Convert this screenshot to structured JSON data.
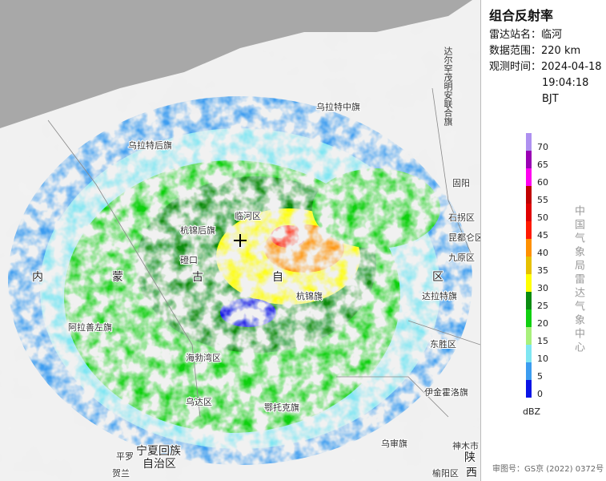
{
  "panel": {
    "title": "组合反射率",
    "station_label": "雷达站名：",
    "station": "临河",
    "range_label": "数据范围：",
    "range": "220 km",
    "time_label": "观测时间：",
    "time_date": "2024-04-18",
    "time_clock": "19:04:18 BJT",
    "vertical_credit": "中国气象局雷达气象中心",
    "approval": "审图号：GS京 (2022) 0372号"
  },
  "legend": {
    "unit": "dBZ",
    "levels": [
      {
        "value": 0,
        "color": "#0a14e6"
      },
      {
        "value": 5,
        "color": "#3c9cf0"
      },
      {
        "value": 10,
        "color": "#7fe6f2"
      },
      {
        "value": 15,
        "color": "#a8f07c"
      },
      {
        "value": 20,
        "color": "#10d010"
      },
      {
        "value": 25,
        "color": "#0a8c10"
      },
      {
        "value": 30,
        "color": "#ffff00"
      },
      {
        "value": 35,
        "color": "#e6c000"
      },
      {
        "value": 40,
        "color": "#ff9000"
      },
      {
        "value": 45,
        "color": "#ff1a00"
      },
      {
        "value": 50,
        "color": "#e00000"
      },
      {
        "value": 55,
        "color": "#c00000"
      },
      {
        "value": 60,
        "color": "#ff00f0"
      },
      {
        "value": 65,
        "color": "#9a00b4"
      },
      {
        "value": 70,
        "color": "#ae90f0"
      }
    ]
  },
  "places": {
    "urad_middle": "乌拉特中旗",
    "urad_rear": "乌拉特后旗",
    "darhan": "达尔罕茂明安联合旗",
    "linhe": "临河区",
    "hangjin_rear": "杭锦后旗",
    "dengkou": "磴口",
    "inner_1": "内",
    "inner_2": "蒙",
    "inner_3": "古",
    "inner_4": "自",
    "inner_5": "区",
    "dalad": "达拉特旗",
    "jiuyuan": "九原区",
    "shiguai": "石拐区",
    "guyang": "固阳",
    "kundulun": "昆都仑区",
    "dongsheng": "东胜区",
    "ejin_horo": "伊金霍洛旗",
    "alxa_left": "阿拉善左旗",
    "hangjin": "杭锦旗",
    "haibowan": "海勃湾区",
    "wuda": "乌达区",
    "otog": "鄂托克旗",
    "uxin": "乌审旗",
    "ningxia_1": "宁夏回族",
    "ningxia_2": "自治区",
    "pingluo": "平罗",
    "helan": "贺兰",
    "shenmu": "神木市",
    "yuyang": "榆阳区",
    "shaanxi_1": "陕",
    "shaanxi_2": "西"
  }
}
